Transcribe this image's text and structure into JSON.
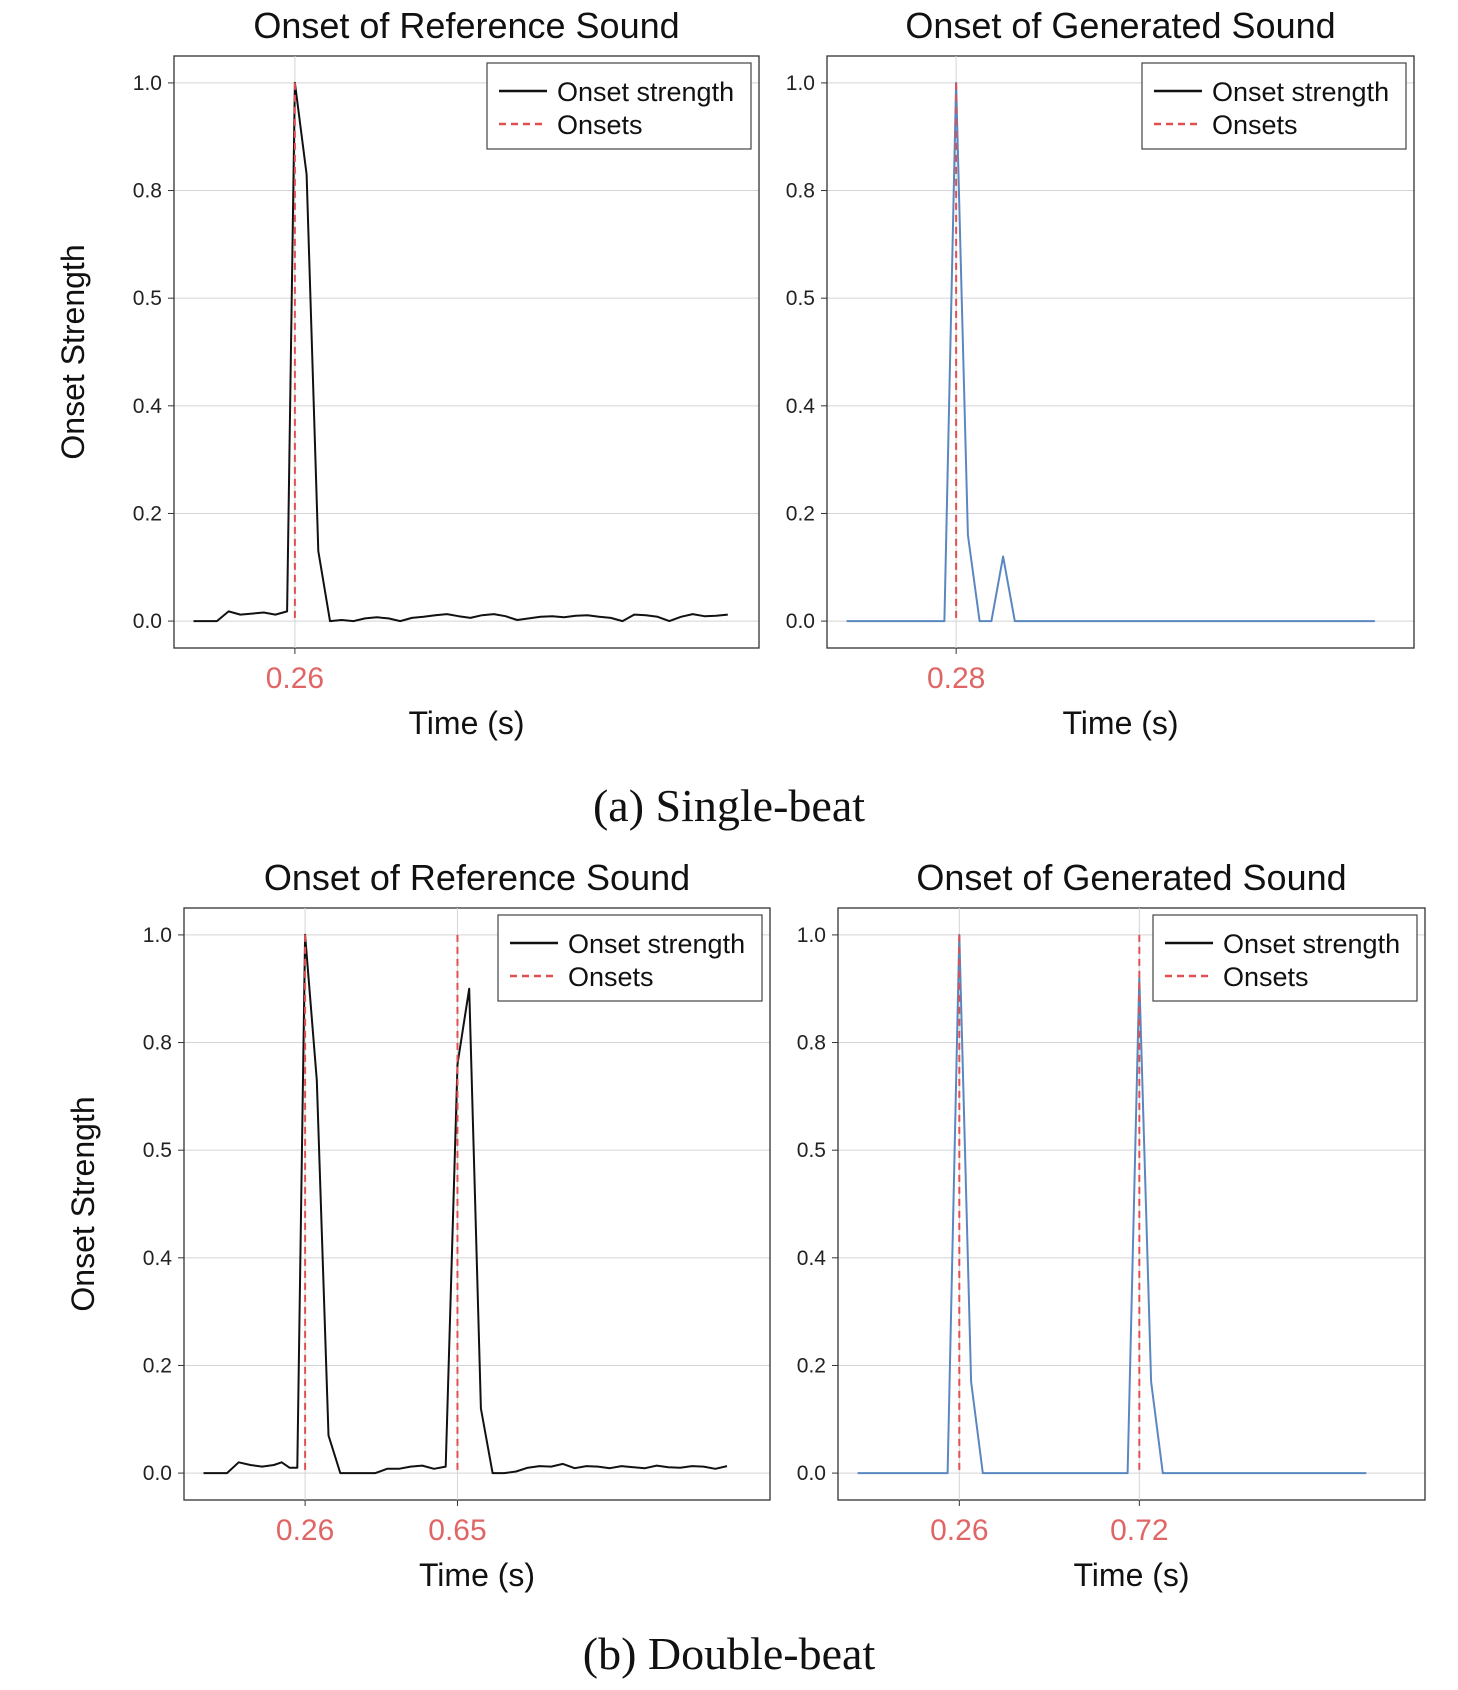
{
  "captions": {
    "a": "(a) Single-beat",
    "b": "(b) Double-beat"
  },
  "colors": {
    "reference": "#111111",
    "generated": "#5b87c0",
    "onset": "#e05050",
    "onset_label": "#e06666"
  },
  "chart_data": [
    {
      "type": "line",
      "title": "Onset of Reference Sound",
      "xlabel": "Time (s)",
      "ylabel": "Onset Strength",
      "ylim": [
        -0.05,
        1.05
      ],
      "xlim": [
        -0.05,
        1.45
      ],
      "yticks": [
        "0.0",
        "0.2",
        "0.4",
        "0.5",
        "0.8",
        "1.0"
      ],
      "grid": true,
      "legend": {
        "position": "top-right",
        "entries": [
          "Onset strength",
          "Onsets"
        ]
      },
      "onsets": [
        0.26
      ],
      "onset_labels": [
        "0.26"
      ],
      "series": [
        {
          "name": "Onset strength",
          "color": "#111111",
          "x": [
            0,
            0.03,
            0.06,
            0.09,
            0.12,
            0.15,
            0.18,
            0.21,
            0.24,
            0.26,
            0.29,
            0.32,
            0.35,
            0.38,
            0.41,
            0.44,
            0.47,
            0.5,
            0.53,
            0.56,
            0.59,
            0.62,
            0.65,
            0.68,
            0.71,
            0.74,
            0.77,
            0.8,
            0.83,
            0.86,
            0.89,
            0.92,
            0.95,
            0.98,
            1.01,
            1.04,
            1.07,
            1.1,
            1.13,
            1.16,
            1.19,
            1.22,
            1.25,
            1.28,
            1.31,
            1.34,
            1.37
          ],
          "y": [
            0.0,
            0.0,
            0.0,
            0.018,
            0.012,
            0.014,
            0.016,
            0.012,
            0.018,
            1.0,
            0.83,
            0.13,
            0.0,
            0.002,
            0.0,
            0.005,
            0.007,
            0.005,
            0.0,
            0.006,
            0.008,
            0.011,
            0.013,
            0.009,
            0.006,
            0.011,
            0.013,
            0.009,
            0.002,
            0.005,
            0.008,
            0.009,
            0.007,
            0.01,
            0.011,
            0.008,
            0.006,
            0.0,
            0.012,
            0.011,
            0.008,
            0.0,
            0.008,
            0.013,
            0.009,
            0.01,
            0.012
          ]
        }
      ]
    },
    {
      "type": "line",
      "title": "Onset of Generated Sound",
      "xlabel": "Time (s)",
      "ylabel": "",
      "ylim": [
        -0.05,
        1.05
      ],
      "xlim": [
        -0.05,
        1.45
      ],
      "yticks": [
        "0.0",
        "0.2",
        "0.4",
        "0.5",
        "0.8",
        "1.0"
      ],
      "grid": true,
      "legend": {
        "position": "top-right",
        "entries": [
          "Onset strength",
          "Onsets"
        ]
      },
      "onsets": [
        0.28
      ],
      "onset_labels": [
        "0.28"
      ],
      "series": [
        {
          "color": "#5b87c0",
          "x": [
            0.0,
            0.03,
            0.06,
            0.09,
            0.12,
            0.15,
            0.18,
            0.21,
            0.24,
            0.25,
            0.28,
            0.31,
            0.34,
            0.37,
            0.4,
            0.43,
            0.46,
            0.49,
            0.52,
            0.55,
            0.6,
            0.7,
            0.8,
            0.9,
            1.0,
            1.1,
            1.2,
            1.3,
            1.35
          ],
          "y": [
            0.0,
            0.0,
            0.0,
            0.0,
            0.0,
            0.0,
            0.0,
            0.0,
            0.0,
            0.0,
            1.0,
            0.16,
            0.0,
            0.0,
            0.12,
            0.0,
            0.0,
            0.0,
            0.0,
            0.0,
            0.0,
            0.0,
            0.0,
            0.0,
            0.0,
            0.0,
            0.0,
            0.0,
            0.0
          ]
        }
      ]
    },
    {
      "type": "line",
      "title": "Onset of Reference Sound",
      "xlabel": "Time (s)",
      "ylabel": "Onset Strength",
      "ylim": [
        -0.05,
        1.05
      ],
      "xlim": [
        -0.05,
        1.45
      ],
      "yticks": [
        "0.0",
        "0.2",
        "0.4",
        "0.5",
        "0.8",
        "1.0"
      ],
      "grid": true,
      "legend": {
        "position": "top-right",
        "entries": [
          "Onset strength",
          "Onsets"
        ]
      },
      "onsets": [
        0.26,
        0.65
      ],
      "onset_labels": [
        "0.26",
        "0.65"
      ],
      "series": [
        {
          "name": "Onset strength",
          "color": "#111111",
          "x": [
            0,
            0.03,
            0.06,
            0.09,
            0.12,
            0.15,
            0.18,
            0.2,
            0.22,
            0.24,
            0.26,
            0.29,
            0.32,
            0.35,
            0.38,
            0.41,
            0.44,
            0.47,
            0.5,
            0.53,
            0.56,
            0.59,
            0.62,
            0.65,
            0.68,
            0.71,
            0.74,
            0.77,
            0.8,
            0.83,
            0.86,
            0.89,
            0.92,
            0.95,
            0.98,
            1.01,
            1.04,
            1.07,
            1.1,
            1.13,
            1.16,
            1.19,
            1.22,
            1.25,
            1.28,
            1.31,
            1.34
          ],
          "y": [
            0.0,
            0.0,
            0.0,
            0.02,
            0.015,
            0.012,
            0.015,
            0.02,
            0.01,
            0.01,
            1.0,
            0.73,
            0.07,
            0.0,
            0.0,
            0.0,
            0.0,
            0.008,
            0.008,
            0.012,
            0.014,
            0.008,
            0.012,
            0.76,
            0.9,
            0.12,
            0.0,
            0.0,
            0.003,
            0.01,
            0.013,
            0.012,
            0.017,
            0.009,
            0.013,
            0.012,
            0.009,
            0.013,
            0.011,
            0.009,
            0.014,
            0.011,
            0.01,
            0.013,
            0.012,
            0.008,
            0.013
          ]
        }
      ]
    },
    {
      "type": "line",
      "title": "Onset of Generated Sound",
      "xlabel": "Time (s)",
      "ylabel": "",
      "ylim": [
        -0.05,
        1.05
      ],
      "xlim": [
        -0.05,
        1.45
      ],
      "yticks": [
        "0.0",
        "0.2",
        "0.4",
        "0.5",
        "0.8",
        "1.0"
      ],
      "grid": true,
      "legend": {
        "position": "top-right",
        "entries": [
          "Onset strength",
          "Onsets"
        ]
      },
      "onsets": [
        0.26,
        0.72
      ],
      "onset_labels": [
        "0.26",
        "0.72"
      ],
      "series": [
        {
          "color": "#5b87c0",
          "x": [
            0.0,
            0.05,
            0.1,
            0.15,
            0.2,
            0.23,
            0.26,
            0.29,
            0.32,
            0.4,
            0.5,
            0.6,
            0.66,
            0.69,
            0.72,
            0.75,
            0.78,
            0.9,
            1.0,
            1.1,
            1.2,
            1.3
          ],
          "y": [
            0.0,
            0.0,
            0.0,
            0.0,
            0.0,
            0.0,
            1.0,
            0.17,
            0.0,
            0.0,
            0.0,
            0.0,
            0.0,
            0.0,
            0.92,
            0.17,
            0.0,
            0.0,
            0.0,
            0.0,
            0.0,
            0.0
          ]
        }
      ]
    }
  ]
}
